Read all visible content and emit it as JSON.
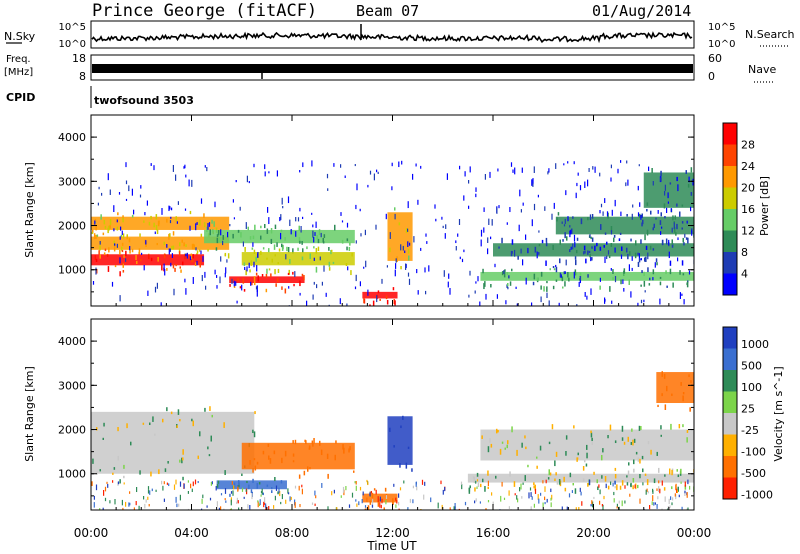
{
  "header": {
    "title": "Prince George (fitACF)",
    "beam": "Beam 07",
    "date": "01/Aug/2014"
  },
  "nsky_panel": {
    "left_label": "N.Sky",
    "right_label": "N.Search",
    "left_ticks": [
      "10^5",
      "10^0"
    ],
    "right_ticks": [
      "10^5",
      "10^0"
    ]
  },
  "freq_panel": {
    "left_label_1": "Freq.",
    "left_label_2": "[MHz]",
    "right_label": "Nave",
    "left_ticks": [
      "18",
      "8"
    ],
    "right_ticks": [
      "60",
      "0"
    ]
  },
  "cpid": {
    "label": "CPID",
    "value": "twofsound 3503"
  },
  "power_panel": {
    "ylabel": "Slant Range [km]",
    "yticks": [
      "4000",
      "3000",
      "2000",
      "1000"
    ],
    "colorbar_label": "Power [dB]",
    "colorbar_ticks": [
      "28",
      "24",
      "20",
      "16",
      "12",
      "8",
      "4"
    ],
    "colors": [
      "#0000ff",
      "#1e3cb4",
      "#2e8b57",
      "#66cd66",
      "#cccc00",
      "#ff9900",
      "#ff4400",
      "#ff0000"
    ]
  },
  "velocity_panel": {
    "ylabel": "Slant Range [km]",
    "yticks": [
      "4000",
      "3000",
      "2000",
      "1000"
    ],
    "colorbar_label": "Velocity [m s^-1]",
    "colorbar_ticks": [
      "1000",
      "500",
      "100",
      "25",
      "-25",
      "-100",
      "-500",
      "-1000"
    ],
    "colors": [
      "#2040c0",
      "#3a6fd0",
      "#2e8b57",
      "#7cd44a",
      "#c8c8c8",
      "#ffb000",
      "#ff7000",
      "#ff2000"
    ]
  },
  "x_axis": {
    "ticks": [
      "00:00",
      "04:00",
      "08:00",
      "12:00",
      "16:00",
      "20:00",
      "00:00"
    ],
    "label": "Time UT"
  },
  "chart_data": {
    "type": "heatmap",
    "x_range_hours": [
      0,
      24
    ],
    "y_range_km": [
      180,
      4500
    ],
    "power_scale_db": [
      0,
      32
    ],
    "velocity_scale_ms": [
      -1000,
      1000
    ],
    "power_bands": [
      {
        "t0": 0.0,
        "t1": 5.5,
        "r0": 1900,
        "r1": 2200,
        "db": 20
      },
      {
        "t0": 0.0,
        "t1": 5.5,
        "r0": 1450,
        "r1": 1750,
        "db": 22
      },
      {
        "t0": 0.0,
        "t1": 4.5,
        "r0": 1100,
        "r1": 1350,
        "db": 28
      },
      {
        "t0": 4.5,
        "t1": 10.5,
        "r0": 1600,
        "r1": 1900,
        "db": 14
      },
      {
        "t0": 6.0,
        "t1": 10.5,
        "r0": 1100,
        "r1": 1400,
        "db": 18
      },
      {
        "t0": 5.5,
        "t1": 8.5,
        "r0": 700,
        "r1": 850,
        "db": 28
      },
      {
        "t0": 10.8,
        "t1": 12.2,
        "r0": 350,
        "r1": 500,
        "db": 30
      },
      {
        "t0": 11.8,
        "t1": 12.8,
        "r0": 1200,
        "r1": 2300,
        "db": 20
      },
      {
        "t0": 15.5,
        "t1": 24.0,
        "r0": 750,
        "r1": 950,
        "db": 12
      },
      {
        "t0": 16.0,
        "t1": 24.0,
        "r0": 1300,
        "r1": 1600,
        "db": 8
      },
      {
        "t0": 18.5,
        "t1": 24.0,
        "r0": 1800,
        "r1": 2200,
        "db": 10
      },
      {
        "t0": 22.0,
        "t1": 24.0,
        "r0": 2400,
        "r1": 3200,
        "db": 8
      }
    ],
    "velocity_bands": [
      {
        "t0": 0.0,
        "t1": 6.5,
        "r0": 1000,
        "r1": 2400,
        "v": 0
      },
      {
        "t0": 5.0,
        "t1": 7.8,
        "r0": 650,
        "r1": 850,
        "v": 150
      },
      {
        "t0": 6.0,
        "t1": 10.5,
        "r0": 1100,
        "r1": 1700,
        "v": -400
      },
      {
        "t0": 10.8,
        "t1": 12.2,
        "r0": 350,
        "r1": 550,
        "v": -300
      },
      {
        "t0": 11.8,
        "t1": 12.8,
        "r0": 1200,
        "r1": 2300,
        "v": 600
      },
      {
        "t0": 15.0,
        "t1": 24.0,
        "r0": 800,
        "r1": 1000,
        "v": 0
      },
      {
        "t0": 15.5,
        "t1": 24.0,
        "r0": 1300,
        "r1": 2000,
        "v": 0
      },
      {
        "t0": 22.5,
        "t1": 24.0,
        "r0": 2600,
        "r1": 3300,
        "v": -300
      }
    ]
  }
}
